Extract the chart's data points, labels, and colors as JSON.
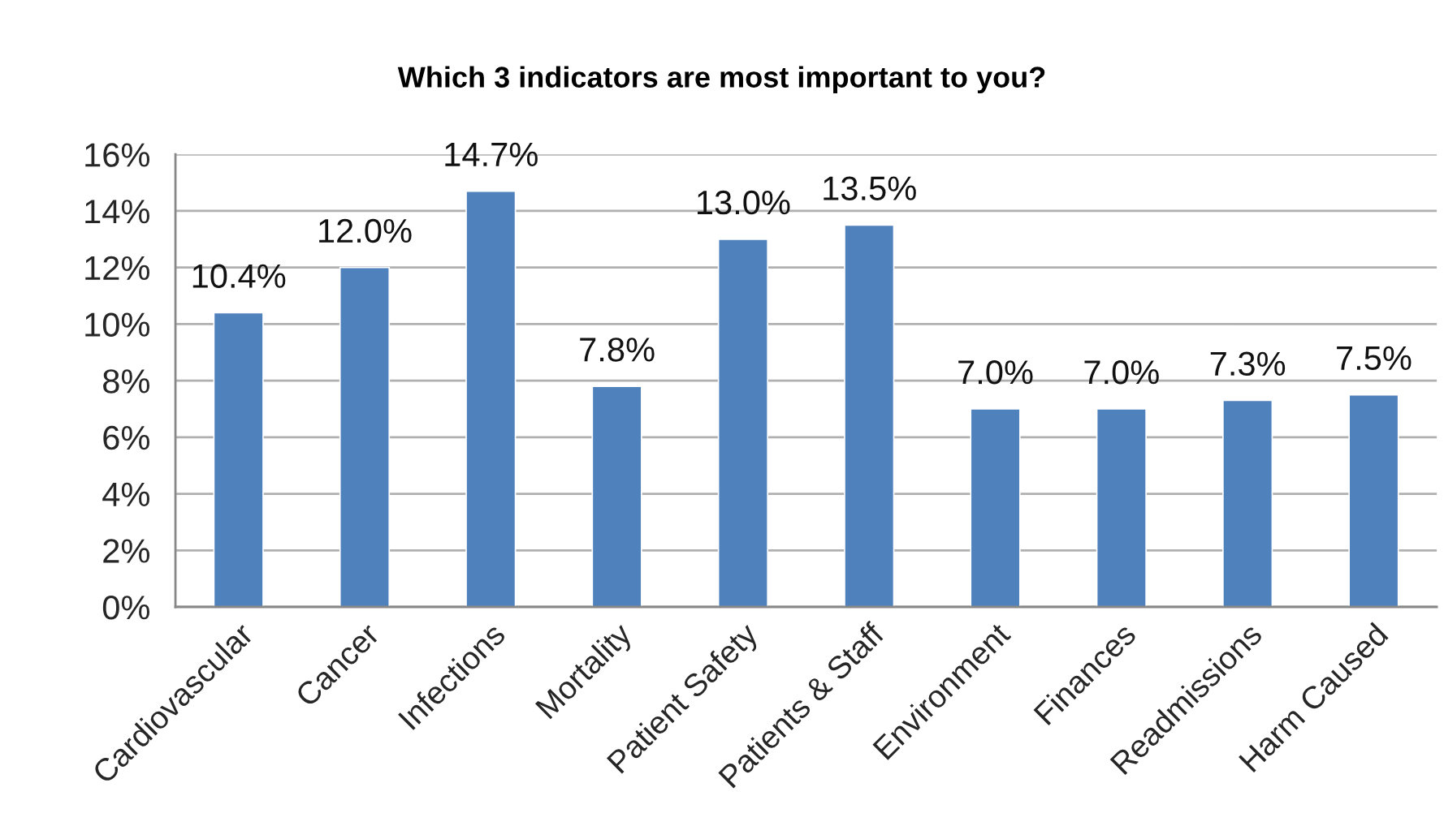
{
  "chart_data": {
    "type": "bar",
    "title": "Which 3 indicators are most important to you?",
    "categories": [
      "Cardiovascular",
      "Cancer",
      "Infections",
      "Mortality",
      "Patient Safety",
      "Patients & Staff",
      "Environment",
      "Finances",
      "Readmissions",
      "Harm Caused"
    ],
    "values": [
      10.4,
      12.0,
      14.7,
      7.8,
      13.0,
      13.5,
      7.0,
      7.0,
      7.3,
      7.5
    ],
    "value_labels": [
      "10.4%",
      "12.0%",
      "14.7%",
      "7.8%",
      "13.0%",
      "13.5%",
      "7.0%",
      "7.0%",
      "7.3%",
      "7.5%"
    ],
    "color": "#4f81bd",
    "ylim": [
      0,
      16
    ],
    "yticks": [
      {
        "value": 0,
        "label": "0%"
      },
      {
        "value": 2,
        "label": "2%"
      },
      {
        "value": 4,
        "label": "4%"
      },
      {
        "value": 6,
        "label": "6%"
      },
      {
        "value": 8,
        "label": "8%"
      },
      {
        "value": 10,
        "label": "10%"
      },
      {
        "value": 12,
        "label": "12%"
      },
      {
        "value": 14,
        "label": "14%"
      },
      {
        "value": 16,
        "label": "16%"
      }
    ],
    "grid": "y"
  }
}
